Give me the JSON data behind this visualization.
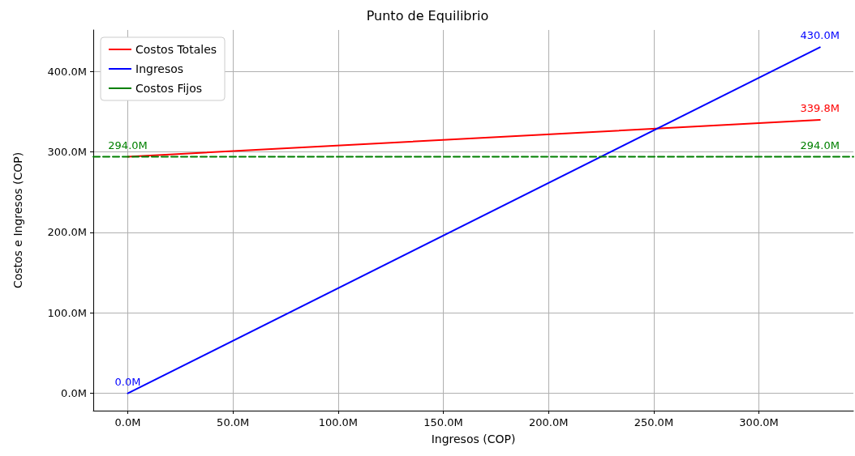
{
  "chart_data": {
    "type": "line",
    "title": "Punto de Equilibrio",
    "xlabel": "Ingresos (COP)",
    "ylabel": "Costos e Ingresos (COP)",
    "xlim": [
      -16.4,
      344.9
    ],
    "ylim": [
      -21.5,
      451.5
    ],
    "xticks": [
      {
        "value": 0,
        "label": "0.0M"
      },
      {
        "value": 50,
        "label": "50.0M"
      },
      {
        "value": 100,
        "label": "100.0M"
      },
      {
        "value": 150,
        "label": "150.0M"
      },
      {
        "value": 200,
        "label": "200.0M"
      },
      {
        "value": 250,
        "label": "250.0M"
      },
      {
        "value": 300,
        "label": "300.0M"
      }
    ],
    "yticks": [
      {
        "value": 0,
        "label": "0.0M"
      },
      {
        "value": 100,
        "label": "100.0M"
      },
      {
        "value": 200,
        "label": "200.0M"
      },
      {
        "value": 300,
        "label": "300.0M"
      },
      {
        "value": 400,
        "label": "400.0M"
      }
    ],
    "grid": true,
    "legend": "top left",
    "marker": "none",
    "series": [
      {
        "name": "Costos Totales",
        "color": "#ff0000",
        "line_style": "solid",
        "x": [
          0,
          329
        ],
        "values": [
          294,
          339.8
        ],
        "value_labels": [
          null,
          "339.8M"
        ]
      },
      {
        "name": "Ingresos",
        "color": "#0000ff",
        "line_style": "solid",
        "x": [
          0,
          329
        ],
        "values": [
          0,
          430
        ],
        "value_labels": [
          "0.0M",
          "430.0M"
        ]
      },
      {
        "name": "Costos Fijos",
        "color": "#008000",
        "line_style": "dashed",
        "x": [
          -16.4,
          0,
          329,
          344.9
        ],
        "values": [
          294,
          294,
          294,
          294
        ],
        "value_labels": [
          null,
          "294.0M",
          "294.0M",
          null
        ]
      }
    ]
  }
}
